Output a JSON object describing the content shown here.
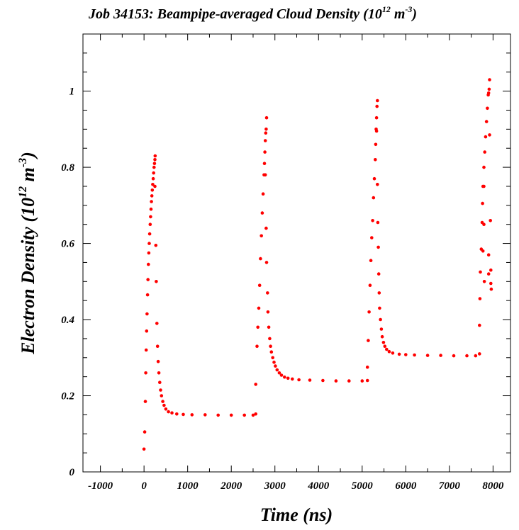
{
  "colors": {
    "points": "#ff0000",
    "axes": "#000000",
    "background": "#ffffff"
  },
  "header": {
    "title_main": "Job 34153: Beampipe-averaged Cloud Density (10",
    "title_exp1": "12",
    "title_mid": " m",
    "title_exp2": "-3",
    "title_end": ")"
  },
  "axes": {
    "xlabel": "Time (ns)",
    "ylabel_main": "Electron Density (10",
    "ylabel_exp1": "12",
    "ylabel_mid": " m",
    "ylabel_exp2": "-3",
    "ylabel_end": ")"
  },
  "chart_data": {
    "type": "scatter",
    "title": "Job 34153: Beampipe-averaged Cloud Density (10^12 m^-3)",
    "xlabel": "Time (ns)",
    "ylabel": "Electron Density (10^12 m^-3)",
    "xlim": [
      -1400,
      8400
    ],
    "ylim": [
      0,
      1.15
    ],
    "x_ticks": [
      -1000,
      0,
      1000,
      2000,
      3000,
      4000,
      5000,
      6000,
      7000,
      8000
    ],
    "x_tick_labels": [
      "-1000",
      "0",
      "1000",
      "2000",
      "3000",
      "4000",
      "5000",
      "6000",
      "7000",
      "8000"
    ],
    "y_ticks": [
      0,
      0.2,
      0.4,
      0.6,
      0.8,
      1
    ],
    "y_tick_labels": [
      "0",
      "0.2",
      "0.4",
      "0.6",
      "0.8",
      "1"
    ],
    "grid": false,
    "series": [
      {
        "color": "#ff0000",
        "points": [
          [
            0,
            0.06
          ],
          [
            15,
            0.105
          ],
          [
            30,
            0.185
          ],
          [
            40,
            0.26
          ],
          [
            50,
            0.32
          ],
          [
            60,
            0.37
          ],
          [
            70,
            0.415
          ],
          [
            80,
            0.465
          ],
          [
            90,
            0.505
          ],
          [
            100,
            0.545
          ],
          [
            110,
            0.575
          ],
          [
            120,
            0.6
          ],
          [
            130,
            0.625
          ],
          [
            140,
            0.65
          ],
          [
            150,
            0.67
          ],
          [
            160,
            0.69
          ],
          [
            170,
            0.71
          ],
          [
            180,
            0.725
          ],
          [
            190,
            0.74
          ],
          [
            200,
            0.755
          ],
          [
            210,
            0.77
          ],
          [
            220,
            0.785
          ],
          [
            230,
            0.8
          ],
          [
            240,
            0.81
          ],
          [
            250,
            0.82
          ],
          [
            255,
            0.83
          ],
          [
            250,
            0.75
          ],
          [
            270,
            0.595
          ],
          [
            280,
            0.5
          ],
          [
            295,
            0.39
          ],
          [
            310,
            0.33
          ],
          [
            325,
            0.29
          ],
          [
            340,
            0.26
          ],
          [
            360,
            0.235
          ],
          [
            380,
            0.215
          ],
          [
            400,
            0.2
          ],
          [
            430,
            0.185
          ],
          [
            460,
            0.175
          ],
          [
            500,
            0.165
          ],
          [
            560,
            0.158
          ],
          [
            640,
            0.155
          ],
          [
            750,
            0.152
          ],
          [
            900,
            0.151
          ],
          [
            1100,
            0.15
          ],
          [
            1400,
            0.15
          ],
          [
            1700,
            0.149
          ],
          [
            2000,
            0.149
          ],
          [
            2300,
            0.149
          ],
          [
            2500,
            0.149
          ],
          [
            2560,
            0.152
          ],
          [
            2560,
            0.23
          ],
          [
            2590,
            0.33
          ],
          [
            2610,
            0.38
          ],
          [
            2630,
            0.43
          ],
          [
            2650,
            0.49
          ],
          [
            2670,
            0.56
          ],
          [
            2690,
            0.62
          ],
          [
            2710,
            0.68
          ],
          [
            2730,
            0.73
          ],
          [
            2750,
            0.78
          ],
          [
            2760,
            0.81
          ],
          [
            2770,
            0.84
          ],
          [
            2780,
            0.87
          ],
          [
            2790,
            0.89
          ],
          [
            2800,
            0.9
          ],
          [
            2810,
            0.93
          ],
          [
            2780,
            0.78
          ],
          [
            2800,
            0.64
          ],
          [
            2810,
            0.55
          ],
          [
            2830,
            0.47
          ],
          [
            2840,
            0.42
          ],
          [
            2860,
            0.38
          ],
          [
            2880,
            0.35
          ],
          [
            2900,
            0.33
          ],
          [
            2920,
            0.315
          ],
          [
            2950,
            0.3
          ],
          [
            2980,
            0.288
          ],
          [
            3010,
            0.278
          ],
          [
            3050,
            0.268
          ],
          [
            3100,
            0.26
          ],
          [
            3150,
            0.254
          ],
          [
            3220,
            0.249
          ],
          [
            3300,
            0.246
          ],
          [
            3400,
            0.244
          ],
          [
            3550,
            0.242
          ],
          [
            3800,
            0.241
          ],
          [
            4100,
            0.24
          ],
          [
            4400,
            0.239
          ],
          [
            4700,
            0.239
          ],
          [
            5000,
            0.239
          ],
          [
            5120,
            0.24
          ],
          [
            5120,
            0.275
          ],
          [
            5140,
            0.345
          ],
          [
            5160,
            0.42
          ],
          [
            5180,
            0.49
          ],
          [
            5200,
            0.555
          ],
          [
            5220,
            0.615
          ],
          [
            5240,
            0.66
          ],
          [
            5260,
            0.72
          ],
          [
            5280,
            0.77
          ],
          [
            5300,
            0.82
          ],
          [
            5310,
            0.86
          ],
          [
            5320,
            0.9
          ],
          [
            5330,
            0.93
          ],
          [
            5340,
            0.96
          ],
          [
            5350,
            0.975
          ],
          [
            5330,
            0.895
          ],
          [
            5350,
            0.755
          ],
          [
            5360,
            0.655
          ],
          [
            5370,
            0.59
          ],
          [
            5380,
            0.52
          ],
          [
            5390,
            0.47
          ],
          [
            5400,
            0.43
          ],
          [
            5420,
            0.4
          ],
          [
            5440,
            0.375
          ],
          [
            5460,
            0.355
          ],
          [
            5490,
            0.34
          ],
          [
            5520,
            0.33
          ],
          [
            5560,
            0.322
          ],
          [
            5620,
            0.316
          ],
          [
            5700,
            0.312
          ],
          [
            5850,
            0.309
          ],
          [
            6000,
            0.308
          ],
          [
            6200,
            0.307
          ],
          [
            6500,
            0.306
          ],
          [
            6800,
            0.306
          ],
          [
            7100,
            0.305
          ],
          [
            7400,
            0.305
          ],
          [
            7600,
            0.305
          ],
          [
            7690,
            0.31
          ],
          [
            7690,
            0.385
          ],
          [
            7700,
            0.455
          ],
          [
            7710,
            0.525
          ],
          [
            7730,
            0.585
          ],
          [
            7750,
            0.655
          ],
          [
            7760,
            0.705
          ],
          [
            7770,
            0.75
          ],
          [
            7790,
            0.8
          ],
          [
            7810,
            0.84
          ],
          [
            7830,
            0.88
          ],
          [
            7850,
            0.92
          ],
          [
            7870,
            0.955
          ],
          [
            7890,
            0.99
          ],
          [
            7910,
            1.005
          ],
          [
            7920,
            1.03
          ],
          [
            7900,
            0.995
          ],
          [
            7920,
            0.885
          ],
          [
            7940,
            0.66
          ],
          [
            7790,
            0.65
          ],
          [
            7800,
            0.5
          ],
          [
            7770,
            0.58
          ],
          [
            7900,
            0.57
          ],
          [
            7950,
            0.53
          ],
          [
            7950,
            0.495
          ],
          [
            7960,
            0.48
          ],
          [
            7900,
            0.52
          ],
          [
            7790,
            0.75
          ]
        ]
      }
    ]
  }
}
